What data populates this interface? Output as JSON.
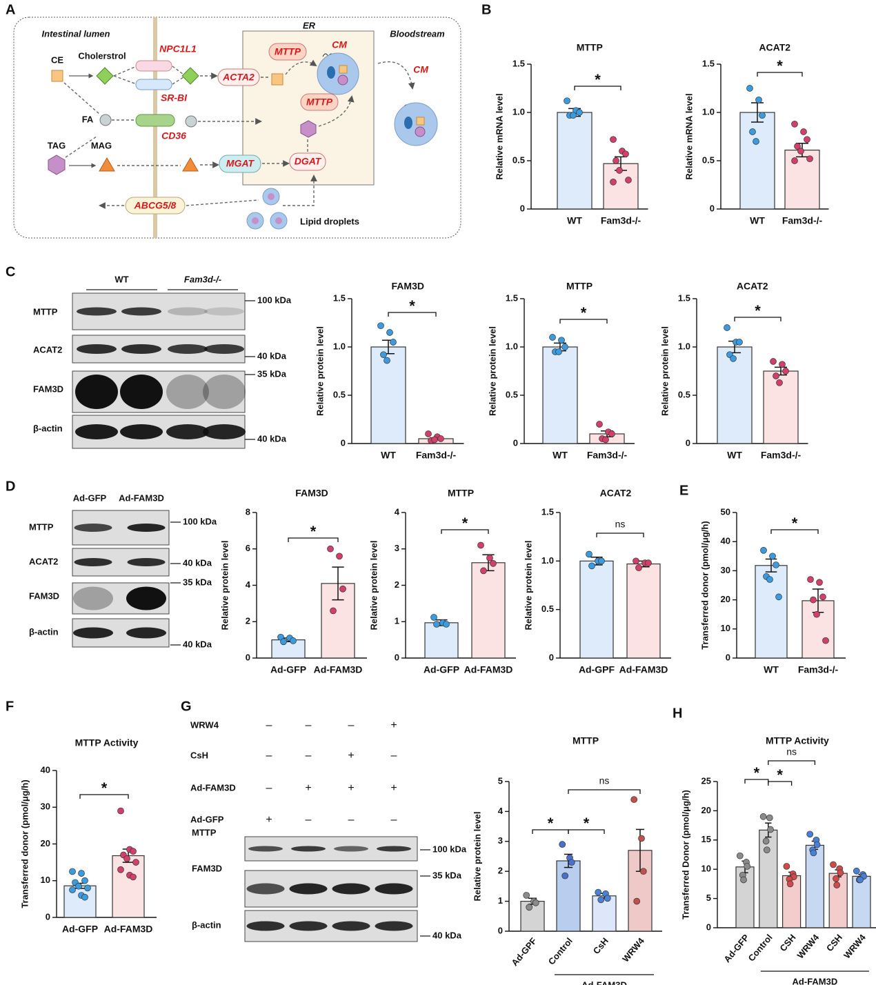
{
  "panel_labels": [
    "A",
    "B",
    "C",
    "D",
    "E",
    "F",
    "G",
    "H"
  ],
  "diagram": {
    "intestinal_lumen": "Intestinal lumen",
    "er": "ER",
    "bloodstream": "Bloodstream",
    "ce": "CE",
    "cholesterol": "Cholerstrol",
    "npc1l1": "NPC1L1",
    "sr_bi": "SR-BI",
    "acta2": "ACTA2",
    "mttp_1": "MTTP",
    "mttp_2": "MTTP",
    "cm_1": "CM",
    "cm_2": "CM",
    "fa": "FA",
    "cd36": "CD36",
    "tag": "TAG",
    "mag": "MAG",
    "mgat": "MGAT",
    "dgat": "DGAT",
    "abcg": "ABCG5/8",
    "lipid_droplets": "Lipid droplets"
  },
  "blots": {
    "C": {
      "groups": [
        "WT",
        "Fam3d-/-"
      ],
      "rows": [
        "MTTP",
        "ACAT2",
        "FAM3D",
        "β-actin"
      ],
      "markers": [
        "100 kDa",
        "40 kDa",
        "35 kDa",
        "40 kDa"
      ]
    },
    "D": {
      "groups": [
        "Ad-GFP",
        "Ad-FAM3D"
      ],
      "rows": [
        "MTTP",
        "ACAT2",
        "FAM3D",
        "β-actin"
      ],
      "markers": [
        "100 kDa",
        "40 kDa",
        "35 kDa",
        "40 kDa"
      ]
    },
    "G": {
      "treatments": [
        {
          "name": "WRW4",
          "signs": [
            "–",
            "–",
            "–",
            "+"
          ]
        },
        {
          "name": "CsH",
          "signs": [
            "–",
            "–",
            "+",
            "–"
          ]
        },
        {
          "name": "Ad-FAM3D",
          "signs": [
            "–",
            "+",
            "+",
            "+"
          ]
        },
        {
          "name": "Ad-GFP",
          "signs": [
            "+",
            "–",
            "–",
            "–"
          ]
        }
      ],
      "rows": [
        "MTTP",
        "FAM3D",
        "β-actin"
      ],
      "markers": [
        "100 kDa",
        "35 kDa",
        "40 kDa"
      ]
    }
  },
  "chart_data": [
    {
      "type": "bar",
      "title": "MTTP",
      "ylabel": "Relative mRNA level",
      "categories": [
        "WT",
        "Fam3d-/-"
      ],
      "values": [
        1.0,
        0.47
      ],
      "errors": [
        0.04,
        0.07
      ],
      "points": [
        [
          1.12,
          1.02,
          1.0,
          0.97,
          0.97
        ],
        [
          0.72,
          0.6,
          0.57,
          0.5,
          0.4,
          0.3,
          0.28
        ]
      ],
      "bar_colors": [
        "#deebfb",
        "#fbe3e3"
      ],
      "point_colors": [
        "#3b9be0",
        "#d23f6a"
      ],
      "ylim": [
        0,
        1.5
      ],
      "yticks": [
        0,
        0.5,
        {
          "value": 1,
          "label": "1.0"
        },
        1.5
      ],
      "comparisons": [
        {
          "between": [
            0,
            1
          ],
          "label": "*"
        }
      ]
    },
    {
      "type": "bar",
      "title": "ACAT2",
      "ylabel": "Relative mRNA level",
      "categories": [
        "WT",
        "Fam3d-/-"
      ],
      "values": [
        1.0,
        0.61
      ],
      "errors": [
        0.1,
        0.07
      ],
      "points": [
        [
          1.25,
          1.13,
          0.97,
          0.8,
          0.7
        ],
        [
          0.88,
          0.8,
          0.72,
          0.65,
          0.6,
          0.52,
          0.5
        ]
      ],
      "bar_colors": [
        "#deebfb",
        "#fbe3e3"
      ],
      "point_colors": [
        "#3b9be0",
        "#d23f6a"
      ],
      "ylim": [
        0,
        1.5
      ],
      "yticks": [
        0,
        0.5,
        {
          "value": 1,
          "label": "1.0"
        },
        1.5
      ],
      "comparisons": [
        {
          "between": [
            0,
            1
          ],
          "label": "*"
        }
      ]
    },
    {
      "type": "bar",
      "title": "FAM3D",
      "ylabel": "Relative protein level",
      "categories": [
        "WT",
        "Fam3d-/-"
      ],
      "values": [
        1.0,
        0.05
      ],
      "errors": [
        0.07,
        0.01
      ],
      "points": [
        [
          1.22,
          1.15,
          1.05,
          0.92,
          0.86
        ],
        [
          0.1,
          0.07,
          0.05,
          0.03,
          0.04
        ]
      ],
      "bar_colors": [
        "#deebfb",
        "#fbe3e3"
      ],
      "point_colors": [
        "#3b9be0",
        "#d23f6a"
      ],
      "ylim": [
        0,
        1.5
      ],
      "yticks": [
        0,
        0.5,
        {
          "value": 1,
          "label": "1.0"
        },
        1.5
      ],
      "comparisons": [
        {
          "between": [
            0,
            1
          ],
          "label": "*"
        }
      ]
    },
    {
      "type": "bar",
      "title": "MTTP",
      "ylabel": "Relative protein level",
      "categories": [
        "WT",
        "Fam3d-/-"
      ],
      "values": [
        1.0,
        0.1
      ],
      "errors": [
        0.04,
        0.03
      ],
      "points": [
        [
          1.1,
          1.07,
          1.0,
          0.95,
          0.95
        ],
        [
          0.2,
          0.12,
          0.1,
          0.05,
          0.04
        ]
      ],
      "bar_colors": [
        "#deebfb",
        "#fbe3e3"
      ],
      "point_colors": [
        "#3b9be0",
        "#d23f6a"
      ],
      "ylim": [
        0,
        1.5
      ],
      "yticks": [
        0,
        0.5,
        {
          "value": 1,
          "label": "1.0"
        },
        1.5
      ],
      "comparisons": [
        {
          "between": [
            0,
            1
          ],
          "label": "*"
        }
      ]
    },
    {
      "type": "bar",
      "title": "ACAT2",
      "ylabel": "Relative protein level",
      "categories": [
        "WT",
        "Fam3d-/-"
      ],
      "values": [
        1.0,
        0.75
      ],
      "errors": [
        0.06,
        0.04
      ],
      "points": [
        [
          1.2,
          1.05,
          1.05,
          0.92,
          0.88
        ],
        [
          0.85,
          0.82,
          0.75,
          0.7,
          0.63
        ]
      ],
      "bar_colors": [
        "#deebfb",
        "#fbe3e3"
      ],
      "point_colors": [
        "#3b9be0",
        "#d23f6a"
      ],
      "ylim": [
        0,
        1.5
      ],
      "yticks": [
        0,
        0.5,
        {
          "value": 1,
          "label": "1.0"
        },
        1.5
      ],
      "comparisons": [
        {
          "between": [
            0,
            1
          ],
          "label": "*"
        }
      ]
    },
    {
      "type": "bar",
      "title": "FAM3D",
      "ylabel": "Relative protein level",
      "categories": [
        "Ad-GFP",
        "Ad-FAM3D"
      ],
      "values": [
        1.0,
        4.1
      ],
      "errors": [
        0.1,
        0.9
      ],
      "points": [
        [
          1.15,
          1.1,
          0.95,
          0.9
        ],
        [
          6.0,
          5.6,
          3.8,
          2.6
        ]
      ],
      "bar_colors": [
        "#deebfb",
        "#fbe3e3"
      ],
      "point_colors": [
        "#3b9be0",
        "#d23f6a"
      ],
      "ylim": [
        0,
        8
      ],
      "yticks": [
        0,
        2,
        4,
        6,
        8
      ],
      "comparisons": [
        {
          "between": [
            0,
            1
          ],
          "label": "*"
        }
      ]
    },
    {
      "type": "bar",
      "title": "MTTP",
      "ylabel": "Relative protein level",
      "categories": [
        "Ad-GFP",
        "Ad-FAM3D"
      ],
      "values": [
        0.97,
        2.62
      ],
      "errors": [
        0.08,
        0.22
      ],
      "points": [
        [
          1.12,
          0.97,
          0.93,
          0.93
        ],
        [
          3.1,
          2.75,
          2.6,
          2.4
        ]
      ],
      "bar_colors": [
        "#deebfb",
        "#fbe3e3"
      ],
      "point_colors": [
        "#3b9be0",
        "#d23f6a"
      ],
      "ylim": [
        0,
        4
      ],
      "yticks": [
        0,
        1,
        2,
        3,
        4
      ],
      "comparisons": [
        {
          "between": [
            0,
            1
          ],
          "label": "*"
        }
      ]
    },
    {
      "type": "bar",
      "title": "ACAT2",
      "ylabel": "Relative protein level",
      "categories": [
        "Ad-GPF",
        "Ad-FAM3D"
      ],
      "values": [
        1.0,
        0.97
      ],
      "errors": [
        0.04,
        0.03
      ],
      "points": [
        [
          1.07,
          1.0,
          1.0,
          0.95
        ],
        [
          1.0,
          0.98,
          0.98,
          0.93
        ]
      ],
      "bar_colors": [
        "#deebfb",
        "#fbe3e3"
      ],
      "point_colors": [
        "#3b9be0",
        "#d23f6a"
      ],
      "ylim": [
        0,
        1.5
      ],
      "yticks": [
        0,
        0.5,
        {
          "value": 1,
          "label": "1.0"
        },
        1.5
      ],
      "comparisons": [
        {
          "between": [
            0,
            1
          ],
          "label": "ns"
        }
      ]
    },
    {
      "type": "bar",
      "ylabel": "Transferred donor (pmol/μg/h)",
      "categories": [
        "WT",
        "Fam3d-/-"
      ],
      "values": [
        31.8,
        19.7
      ],
      "errors": [
        2.2,
        4.0
      ],
      "points": [
        [
          37,
          35,
          32,
          28,
          27,
          21
        ],
        [
          27,
          26,
          21,
          20,
          15,
          6
        ]
      ],
      "bar_colors": [
        "#deebfb",
        "#fbe3e3"
      ],
      "point_colors": [
        "#3b9be0",
        "#d23f6a"
      ],
      "ylim": [
        0,
        50
      ],
      "yticks": [
        0,
        10,
        20,
        30,
        40,
        50
      ],
      "comparisons": [
        {
          "between": [
            0,
            1
          ],
          "label": "*"
        }
      ]
    },
    {
      "type": "bar",
      "title": "MTTP Activity",
      "ylabel": "Transferred donor (pmol/μg/h)",
      "categories": [
        "Ad-GFP",
        "Ad-FAM3D"
      ],
      "values": [
        8.6,
        16.8
      ],
      "errors": [
        0.7,
        1.8
      ],
      "points": [
        [
          12.5,
          12,
          10,
          9.5,
          8.5,
          8,
          7.5,
          6,
          5.5
        ],
        [
          29,
          18.5,
          18,
          17,
          16,
          15,
          13,
          11.5,
          11
        ]
      ],
      "bar_colors": [
        "#deebfb",
        "#fbe3e3"
      ],
      "point_colors": [
        "#3b9be0",
        "#d23f6a"
      ],
      "ylim": [
        0,
        40
      ],
      "yticks": [
        0,
        10,
        20,
        30,
        40
      ],
      "comparisons": [
        {
          "between": [
            0,
            1
          ],
          "label": "*"
        }
      ]
    },
    {
      "type": "bar",
      "title": "MTTP",
      "ylabel": "Relative protein level",
      "categories": [
        "Ad-GPF",
        "Control",
        "CsH",
        "WRW4"
      ],
      "values": [
        1.0,
        2.35,
        1.18,
        2.7
      ],
      "errors": [
        0.1,
        0.22,
        0.08,
        0.7
      ],
      "points": [
        [
          1.2,
          1.0,
          0.95,
          0.8
        ],
        [
          2.9,
          2.45,
          2.3,
          1.85
        ],
        [
          1.3,
          1.25,
          1.1,
          1.05
        ],
        [
          4.4,
          3.1,
          2.0,
          1.0
        ]
      ],
      "bar_colors": [
        "#d4d4d4",
        "#b9cdee",
        "#dde7f9",
        "#efc8c8"
      ],
      "point_colors": [
        "#8a8a8a",
        "#4a6fcf",
        "#4a82d8",
        "#c0504d"
      ],
      "ylim": [
        0,
        5
      ],
      "yticks": [
        0,
        1,
        2,
        3,
        4,
        5
      ],
      "group": {
        "label": "Ad-FAM3D",
        "members": [
          1,
          2,
          3
        ]
      },
      "comparisons": [
        {
          "between": [
            0,
            1
          ],
          "label": "*"
        },
        {
          "between": [
            1,
            2
          ],
          "label": "*"
        },
        {
          "between": [
            1,
            3
          ],
          "label": "ns"
        }
      ]
    },
    {
      "type": "bar",
      "title": "MTTP Activity",
      "ylabel": "Transferred Donor (pmol/μg/h)",
      "categories": [
        "Ad-GFP",
        "Control",
        "CSH",
        "WRW4",
        "CSH",
        "WRW4"
      ],
      "values": [
        10.4,
        16.7,
        8.9,
        14.1,
        9.3,
        8.8
      ],
      "errors": [
        1.0,
        1.2,
        0.6,
        0.7,
        0.6,
        0.3
      ],
      "points": [
        [
          12.3,
          11.2,
          10.5,
          9,
          8.2
        ],
        [
          19,
          18.8,
          16.8,
          14.8,
          13.3
        ],
        [
          10.5,
          9.2,
          8.7,
          8.3,
          7.5
        ],
        [
          16,
          15,
          14.2,
          13.3,
          12.8
        ],
        [
          10.8,
          10.1,
          9.4,
          8.4,
          7.3
        ],
        [
          9.7,
          9.1,
          8.8,
          8.2,
          8.2
        ]
      ],
      "bar_colors": [
        "#d4d4d4",
        "#d4d4d4",
        "#f3cccc",
        "#c7d8f2",
        "#f3cccc",
        "#c7d8f2"
      ],
      "point_colors": [
        "#8a8a8a",
        "#8a8a8a",
        "#d04a4a",
        "#4a7fd6",
        "#d04a4a",
        "#4a7fd6"
      ],
      "ylim": [
        0,
        25
      ],
      "yticks": [
        0,
        5,
        10,
        15,
        20,
        25
      ],
      "group": {
        "label": "Ad-FAM3D",
        "members": [
          1,
          2,
          3,
          4,
          5
        ]
      },
      "comparisons": [
        {
          "between": [
            0,
            1
          ],
          "label": "*"
        },
        {
          "between": [
            1,
            2
          ],
          "label": "*"
        },
        {
          "between": [
            1,
            3
          ],
          "label": "ns"
        }
      ]
    }
  ]
}
